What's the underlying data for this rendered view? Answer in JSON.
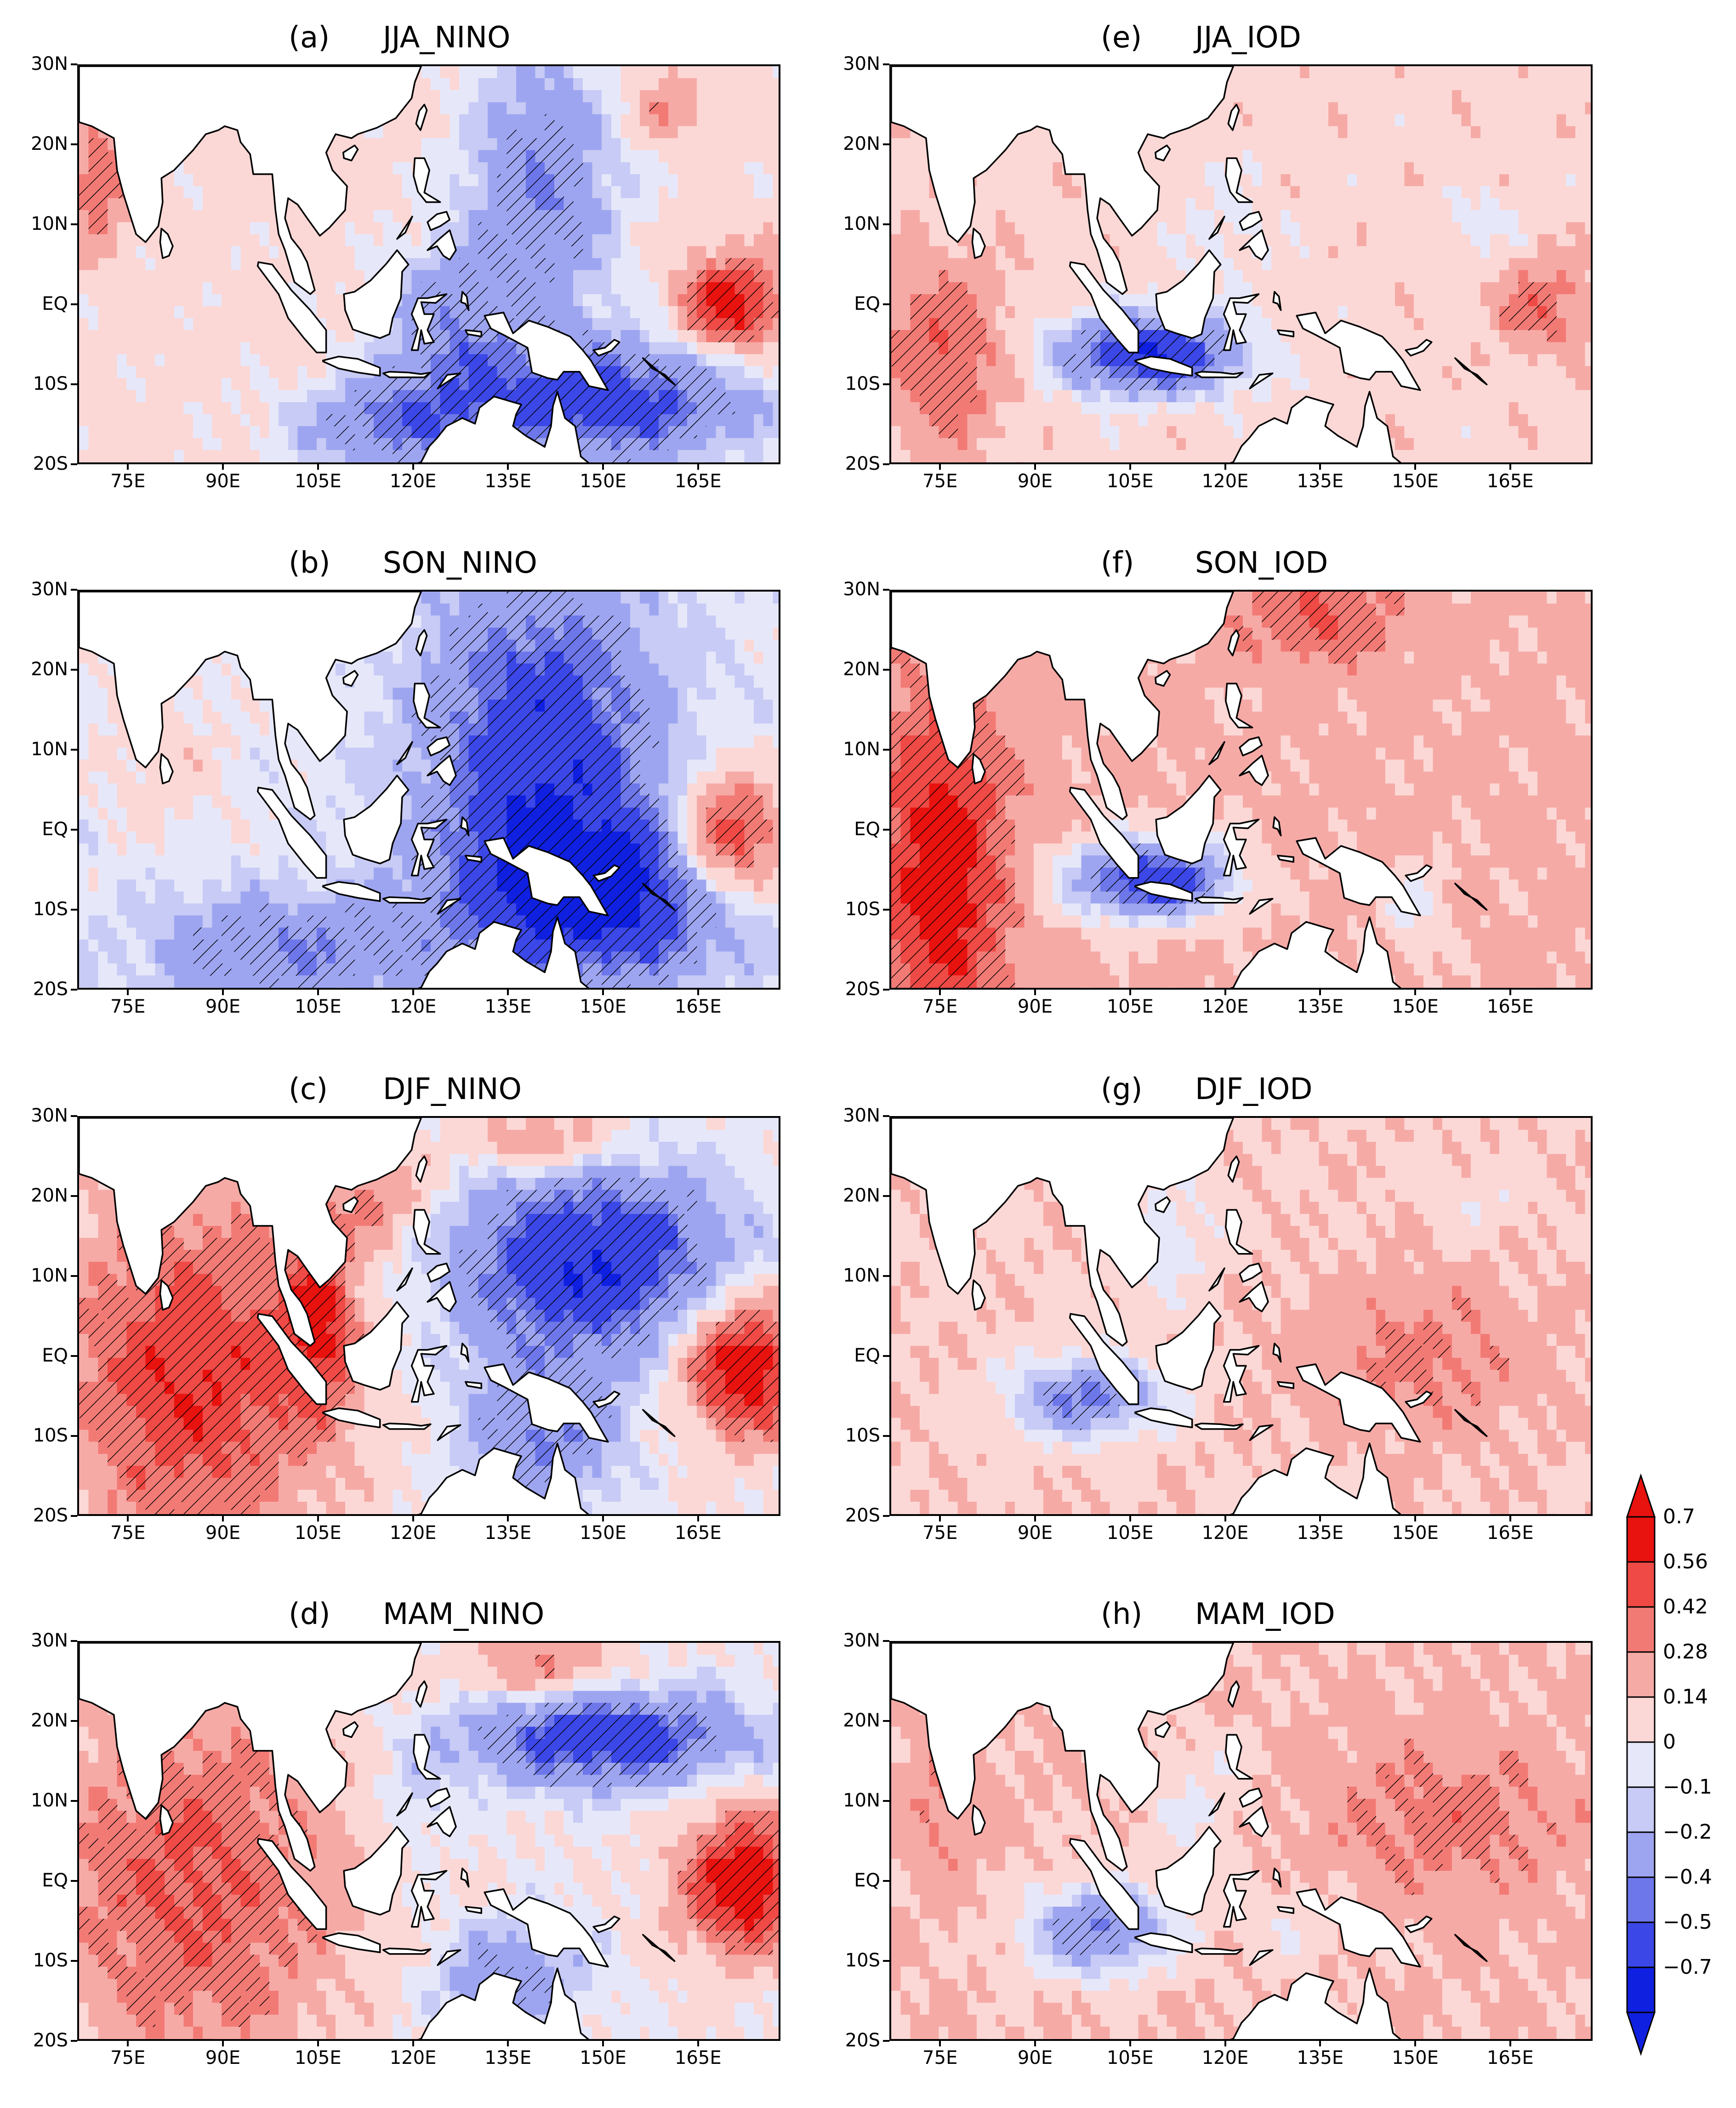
{
  "figure": {
    "lat_ticks": [
      "30N",
      "20N",
      "10N",
      "EQ",
      "10S",
      "20S"
    ],
    "lon_ticks": [
      "75E",
      "90E",
      "105E",
      "120E",
      "135E",
      "150E",
      "165E"
    ],
    "hatch_meaning_shown": false
  },
  "panels": [
    {
      "id": "a",
      "letter": "(a)",
      "name": "JJA_NINO",
      "pattern": "jja_nino"
    },
    {
      "id": "b",
      "letter": "(b)",
      "name": "SON_NINO",
      "pattern": "son_nino"
    },
    {
      "id": "c",
      "letter": "(c)",
      "name": "DJF_NINO",
      "pattern": "djf_nino"
    },
    {
      "id": "d",
      "letter": "(d)",
      "name": "MAM_NINO",
      "pattern": "mam_nino"
    },
    {
      "id": "e",
      "letter": "(e)",
      "name": "JJA_IOD",
      "pattern": "jja_iod"
    },
    {
      "id": "f",
      "letter": "(f)",
      "name": "SON_IOD",
      "pattern": "son_iod"
    },
    {
      "id": "g",
      "letter": "(g)",
      "name": "DJF_IOD",
      "pattern": "djf_iod"
    },
    {
      "id": "h",
      "letter": "(h)",
      "name": "MAM_IOD",
      "pattern": "mam_iod"
    }
  ],
  "colorbar": {
    "labels": [
      "0.7",
      "0.56",
      "0.42",
      "0.28",
      "0.14",
      "0",
      "−0.1",
      "−0.2",
      "−0.4",
      "−0.5",
      "−0.7"
    ],
    "colors": [
      "#e8120f",
      "#ef4a45",
      "#f27a75",
      "#f6aaa6",
      "#fbd8d6",
      "#e6e8fa",
      "#c7cbf5",
      "#9ea5f0",
      "#6d77ea",
      "#3b47e6",
      "#1020e0"
    ],
    "top_arrow_color": "#e8120f",
    "bottom_arrow_color": "#1020e0"
  }
}
